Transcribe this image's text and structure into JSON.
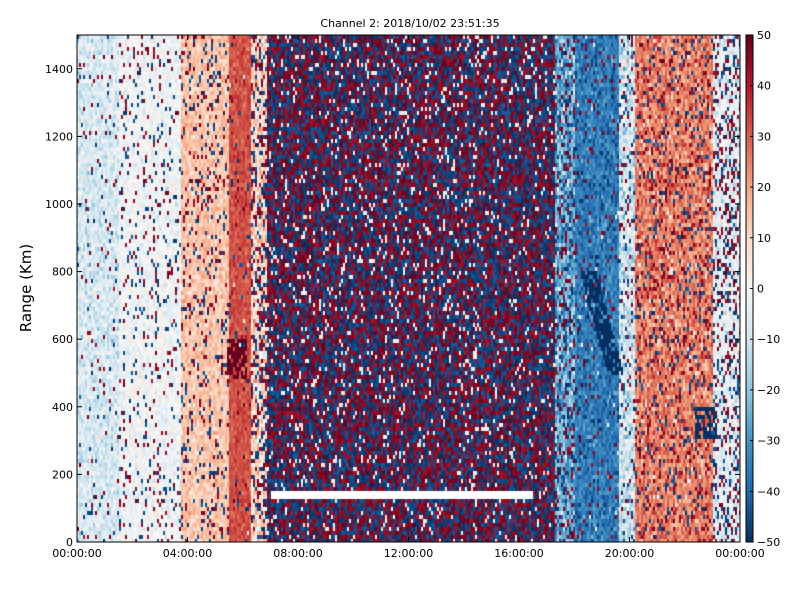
{
  "chart_data": {
    "type": "heatmap",
    "title": "Channel 2: 2018/10/02 23:51:35",
    "xlabel": "",
    "ylabel": "Range (Km)",
    "x_tick_labels": [
      "00:00:00",
      "04:00:00",
      "08:00:00",
      "12:00:00",
      "16:00:00",
      "20:00:00",
      "00:00:00"
    ],
    "x_tick_hours": [
      0,
      4,
      8,
      12,
      16,
      20,
      24
    ],
    "xlim_hours": [
      0,
      24
    ],
    "ylim": [
      0,
      1500
    ],
    "y_ticks": [
      0,
      200,
      400,
      600,
      800,
      1000,
      1200,
      1400
    ],
    "colorbar": {
      "colormap": "RdBu_r",
      "clim": [
        -50,
        50
      ],
      "ticks": [
        -50,
        -40,
        -30,
        -20,
        -10,
        0,
        10,
        20,
        30,
        40,
        50
      ]
    },
    "time_profile": [
      {
        "from_hour": 0.0,
        "to_hour": 1.5,
        "mean": -8,
        "spread": 10,
        "noise_fraction": 0.06
      },
      {
        "from_hour": 1.5,
        "to_hour": 3.8,
        "mean": -2,
        "spread": 8,
        "noise_fraction": 0.12
      },
      {
        "from_hour": 3.8,
        "to_hour": 5.5,
        "mean": 14,
        "spread": 8,
        "noise_fraction": 0.15
      },
      {
        "from_hour": 5.5,
        "to_hour": 6.3,
        "mean": 32,
        "spread": 6,
        "noise_fraction": 0.05
      },
      {
        "from_hour": 6.3,
        "to_hour": 6.9,
        "mean": 10,
        "spread": 15,
        "noise_fraction": 0.35
      },
      {
        "from_hour": 6.9,
        "to_hour": 17.3,
        "mean": 0,
        "spread": 50,
        "noise_fraction": 1.0
      },
      {
        "from_hour": 17.3,
        "to_hour": 18.0,
        "mean": -25,
        "spread": 15,
        "noise_fraction": 0.3
      },
      {
        "from_hour": 18.0,
        "to_hour": 19.6,
        "mean": -35,
        "spread": 10,
        "noise_fraction": 0.1
      },
      {
        "from_hour": 19.6,
        "to_hour": 20.2,
        "mean": -10,
        "spread": 18,
        "noise_fraction": 0.15
      },
      {
        "from_hour": 20.2,
        "to_hour": 23.0,
        "mean": 25,
        "spread": 12,
        "noise_fraction": 0.18
      },
      {
        "from_hour": 23.0,
        "to_hour": 24.0,
        "mean": -5,
        "spread": 12,
        "noise_fraction": 0.3
      }
    ],
    "features": [
      {
        "kind": "empty_band",
        "from_hour": 7.0,
        "to_hour": 16.5,
        "range_from_km": 130,
        "range_to_km": 148
      },
      {
        "kind": "dark_red_blob",
        "hour": 5.8,
        "range_km": 540,
        "value": 50
      },
      {
        "kind": "dark_blue_streak",
        "from_hour": 18.5,
        "to_hour": 19.5,
        "range_from_km": 500,
        "range_to_km": 800,
        "value": -50
      },
      {
        "kind": "dark_blue_blob",
        "hour": 22.8,
        "range_km": 350,
        "value": -50
      }
    ]
  }
}
